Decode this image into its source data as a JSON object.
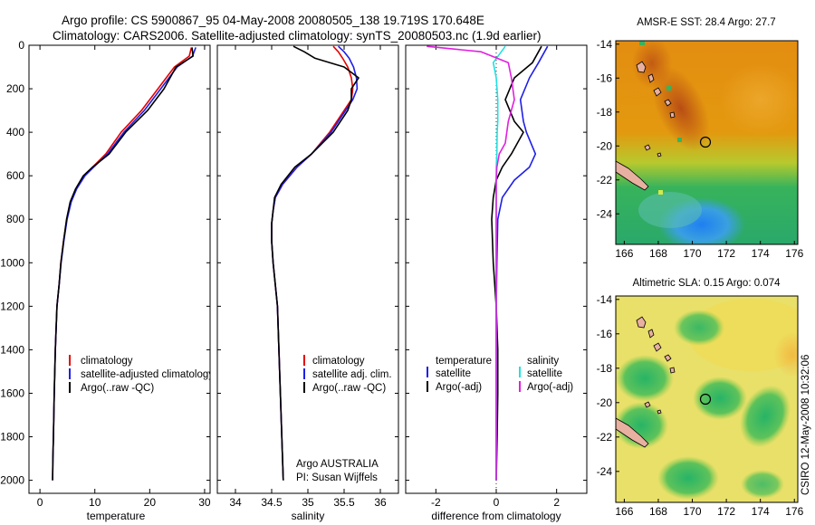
{
  "title": {
    "line1": "Argo profile: CS 5900867_95 04-May-2008 20080505_138 19.719S 170.648E",
    "line2": "Climatology: CARS2006. Satellite-adjusted climatology: synTS_20080503.nc (1.9d earlier)"
  },
  "colors": {
    "climatology": "#e60000",
    "satellite": "#1f1fe6",
    "argo": "#000000",
    "satellite_salinity": "#22e0e0",
    "argo_salinity_adj": "#e020e0"
  },
  "chart_data": [
    {
      "type": "line",
      "panel": "temperature",
      "xlabel": "temperature",
      "ylabel": "",
      "xlim": [
        -2,
        31
      ],
      "ylim": [
        2060,
        0
      ],
      "xticks": [
        0,
        10,
        20,
        30
      ],
      "yticks": [
        0,
        200,
        400,
        600,
        800,
        1000,
        1200,
        1400,
        1600,
        1800,
        2000
      ],
      "legend": [
        "climatology",
        "satellite-adjusted climatology",
        "Argo(..raw -QC)"
      ],
      "series": [
        {
          "name": "climatology",
          "color": "climatology",
          "x": [
            27.6,
            27.2,
            24.5,
            21.5,
            18.5,
            14.8,
            12,
            9.6,
            8,
            6.6,
            5.6,
            4.9,
            4.3,
            3.8,
            3.5,
            3.1,
            2.8,
            2.6,
            2.45,
            2.35,
            2.3
          ],
          "y": [
            10,
            50,
            100,
            200,
            300,
            400,
            500,
            560,
            600,
            660,
            720,
            800,
            900,
            1000,
            1100,
            1200,
            1400,
            1600,
            1800,
            1900,
            2000
          ]
        },
        {
          "name": "satellite-adjusted climatology",
          "color": "satellite",
          "x": [
            28.4,
            27.8,
            25,
            22,
            19,
            15.3,
            12.3,
            9.8,
            8.2,
            6.7,
            5.7,
            4.95,
            4.35,
            3.85,
            3.5,
            3.1,
            2.8,
            2.6,
            2.45,
            2.35,
            2.3
          ],
          "y": [
            10,
            50,
            100,
            200,
            300,
            400,
            500,
            560,
            600,
            660,
            720,
            800,
            900,
            1000,
            1100,
            1200,
            1400,
            1600,
            1800,
            1900,
            2000
          ]
        },
        {
          "name": "Argo(..raw -QC)",
          "color": "argo",
          "x": [
            27.7,
            27.9,
            24.8,
            22.6,
            19.6,
            15.6,
            12.6,
            9.6,
            7.9,
            6.5,
            5.5,
            4.85,
            4.3,
            3.8,
            3.5,
            3.1,
            2.8,
            2.6,
            2.45,
            2.35,
            2.3
          ],
          "y": [
            10,
            50,
            100,
            200,
            300,
            400,
            500,
            560,
            600,
            660,
            720,
            800,
            900,
            1000,
            1100,
            1200,
            1400,
            1600,
            1800,
            1900,
            2000
          ]
        }
      ]
    },
    {
      "type": "line",
      "panel": "salinity",
      "xlabel": "salinity",
      "xlim": [
        33.75,
        36.25
      ],
      "ylim": [
        2060,
        0
      ],
      "xticks": [
        34,
        34.5,
        35,
        35.5,
        36
      ],
      "legend": [
        "climatology",
        "satellite adj. clim.",
        "Argo(..raw -QC)"
      ],
      "annotation": [
        "Argo AUSTRALIA",
        "PI: Susan Wijffels"
      ],
      "series": [
        {
          "name": "climatology",
          "color": "climatology",
          "x": [
            35.35,
            35.42,
            35.48,
            35.55,
            35.6,
            35.62,
            35.6,
            35.5,
            35.3,
            35.05,
            34.85,
            34.65,
            34.55,
            34.52,
            34.5,
            34.5,
            34.52,
            34.55,
            34.58,
            34.6,
            34.62,
            34.64,
            34.65,
            34.66
          ],
          "y": [
            5,
            30,
            60,
            100,
            150,
            200,
            250,
            300,
            400,
            500,
            560,
            640,
            700,
            760,
            820,
            900,
            1000,
            1100,
            1200,
            1400,
            1600,
            1800,
            1900,
            2000
          ]
        },
        {
          "name": "satellite adj. clim.",
          "color": "satellite",
          "x": [
            35.42,
            35.5,
            35.57,
            35.63,
            35.67,
            35.68,
            35.62,
            35.52,
            35.32,
            35.05,
            34.85,
            34.65,
            34.55,
            34.52,
            34.5,
            34.5,
            34.52,
            34.55,
            34.58,
            34.6,
            34.62,
            34.64,
            34.65,
            34.66
          ],
          "y": [
            5,
            30,
            60,
            100,
            150,
            200,
            250,
            300,
            400,
            500,
            560,
            640,
            700,
            760,
            820,
            900,
            1000,
            1100,
            1200,
            1400,
            1600,
            1800,
            1900,
            2000
          ]
        },
        {
          "name": "Argo(..raw -QC)",
          "color": "argo",
          "x": [
            34.8,
            34.95,
            35.1,
            35.5,
            35.7,
            35.6,
            35.6,
            35.55,
            35.35,
            35.05,
            34.82,
            34.63,
            34.54,
            34.52,
            34.5,
            34.5,
            34.52,
            34.55,
            34.58,
            34.6,
            34.62,
            34.64,
            34.65,
            34.66
          ],
          "y": [
            5,
            30,
            60,
            100,
            150,
            200,
            250,
            300,
            400,
            500,
            560,
            640,
            700,
            760,
            820,
            900,
            1000,
            1100,
            1200,
            1400,
            1600,
            1800,
            1900,
            2000
          ]
        }
      ]
    },
    {
      "type": "line",
      "panel": "difference",
      "xlabel": "difference from climatology",
      "xlim": [
        -3,
        3
      ],
      "ylim": [
        2060,
        0
      ],
      "xticks": [
        -2,
        0,
        2
      ],
      "legend_headers": [
        "temperature",
        "salinity"
      ],
      "legend": [
        "satellite",
        "Argo(-adj)",
        "satellite",
        "Argo(-adj)"
      ],
      "series": [
        {
          "name": "temperature satellite",
          "color": "satellite",
          "x": [
            1.7,
            1.4,
            1.1,
            0.8,
            0.9,
            1.0,
            1.3,
            1.1,
            0.6,
            0.2,
            0.05,
            0.02,
            0.0,
            0.0,
            0.0,
            0.0,
            0.0
          ],
          "y": [
            5,
            80,
            150,
            250,
            350,
            400,
            500,
            560,
            620,
            700,
            800,
            1000,
            1200,
            1400,
            1600,
            1800,
            2000
          ]
        },
        {
          "name": "temperature Argo(-adj)",
          "color": "argo",
          "x": [
            1.5,
            1.2,
            0.6,
            0.3,
            0.6,
            0.9,
            0.5,
            0.2,
            0.0,
            -0.1,
            -0.15,
            -0.1,
            0.0,
            0.05,
            0.05,
            0.03,
            0.0
          ],
          "y": [
            5,
            80,
            150,
            250,
            350,
            400,
            500,
            560,
            620,
            700,
            800,
            1000,
            1200,
            1400,
            1600,
            1800,
            2000
          ]
        },
        {
          "name": "salinity satellite",
          "color": "satellite_salinity",
          "x": [
            0.3,
            -0.1,
            0.0,
            0.05,
            0.05,
            0.03,
            0.02,
            0.0,
            0.0,
            0.0,
            0.0,
            0.0,
            0.0,
            0.0,
            0.0,
            0.0,
            0.0
          ],
          "y": [
            5,
            80,
            150,
            250,
            350,
            400,
            500,
            560,
            620,
            700,
            800,
            1000,
            1200,
            1400,
            1600,
            1800,
            2000
          ]
        },
        {
          "name": "salinity Argo(-adj)",
          "color": "argo_salinity_adj",
          "x": [
            -2.3,
            -0.5,
            0.4,
            0.5,
            0.6,
            0.4,
            0.3,
            0.1,
            0.02,
            0.0,
            0.0,
            0.0,
            0.0,
            0.0,
            0.0,
            0.0,
            0.0
          ],
          "y": [
            5,
            30,
            80,
            150,
            250,
            350,
            450,
            500,
            560,
            620,
            700,
            800,
            1000,
            1200,
            1400,
            1800,
            2000
          ]
        }
      ]
    },
    {
      "type": "heatmap",
      "panel": "sst-map",
      "title": "AMSR-E SST: 28.4 Argo: 27.7",
      "xlim": [
        165.5,
        176.2
      ],
      "ylim": [
        -25.8,
        -13.8
      ],
      "xticks": [
        166,
        168,
        170,
        172,
        174,
        176
      ],
      "yticks": [
        -14,
        -16,
        -18,
        -20,
        -22,
        -24
      ],
      "argo_position": {
        "lon": 170.648,
        "lat": -19.719
      }
    },
    {
      "type": "heatmap",
      "panel": "sla-map",
      "title": "Altimetric SLA: 0.15 Argo: 0.074",
      "xlim": [
        165.5,
        176.2
      ],
      "ylim": [
        -25.8,
        -13.8
      ],
      "xticks": [
        166,
        168,
        170,
        172,
        174,
        176
      ],
      "yticks": [
        -14,
        -16,
        -18,
        -20,
        -22,
        -24
      ],
      "argo_position": {
        "lon": 170.648,
        "lat": -19.719
      }
    }
  ],
  "footer": "CSIRO 12-May-2008 10:32:06"
}
